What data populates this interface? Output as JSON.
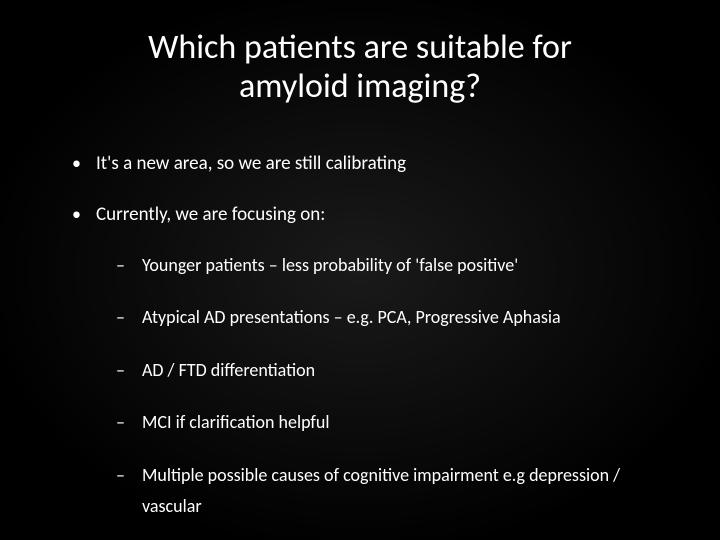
{
  "slide": {
    "title": "Which patients are suitable for amyloid imaging?",
    "bullets": [
      {
        "text": "It's a new area, so we are still calibrating"
      },
      {
        "text": "Currently, we are focusing on:",
        "sub": [
          "Younger patients – less probability of 'false positive'",
          "Atypical AD presentations – e.g. PCA, Progressive Aphasia",
          "AD / FTD differentiation",
          "MCI if clarification helpful",
          "Multiple possible causes of cognitive impairment e.g depression / vascular"
        ]
      }
    ],
    "style": {
      "background_inner": "#1a1a1a",
      "background_outer": "#000000",
      "text_color": "#ffffff",
      "title_fontsize": 34,
      "bullet_fontsize": 19,
      "subbullet_fontsize": 18,
      "font_family": "Calibri"
    }
  }
}
